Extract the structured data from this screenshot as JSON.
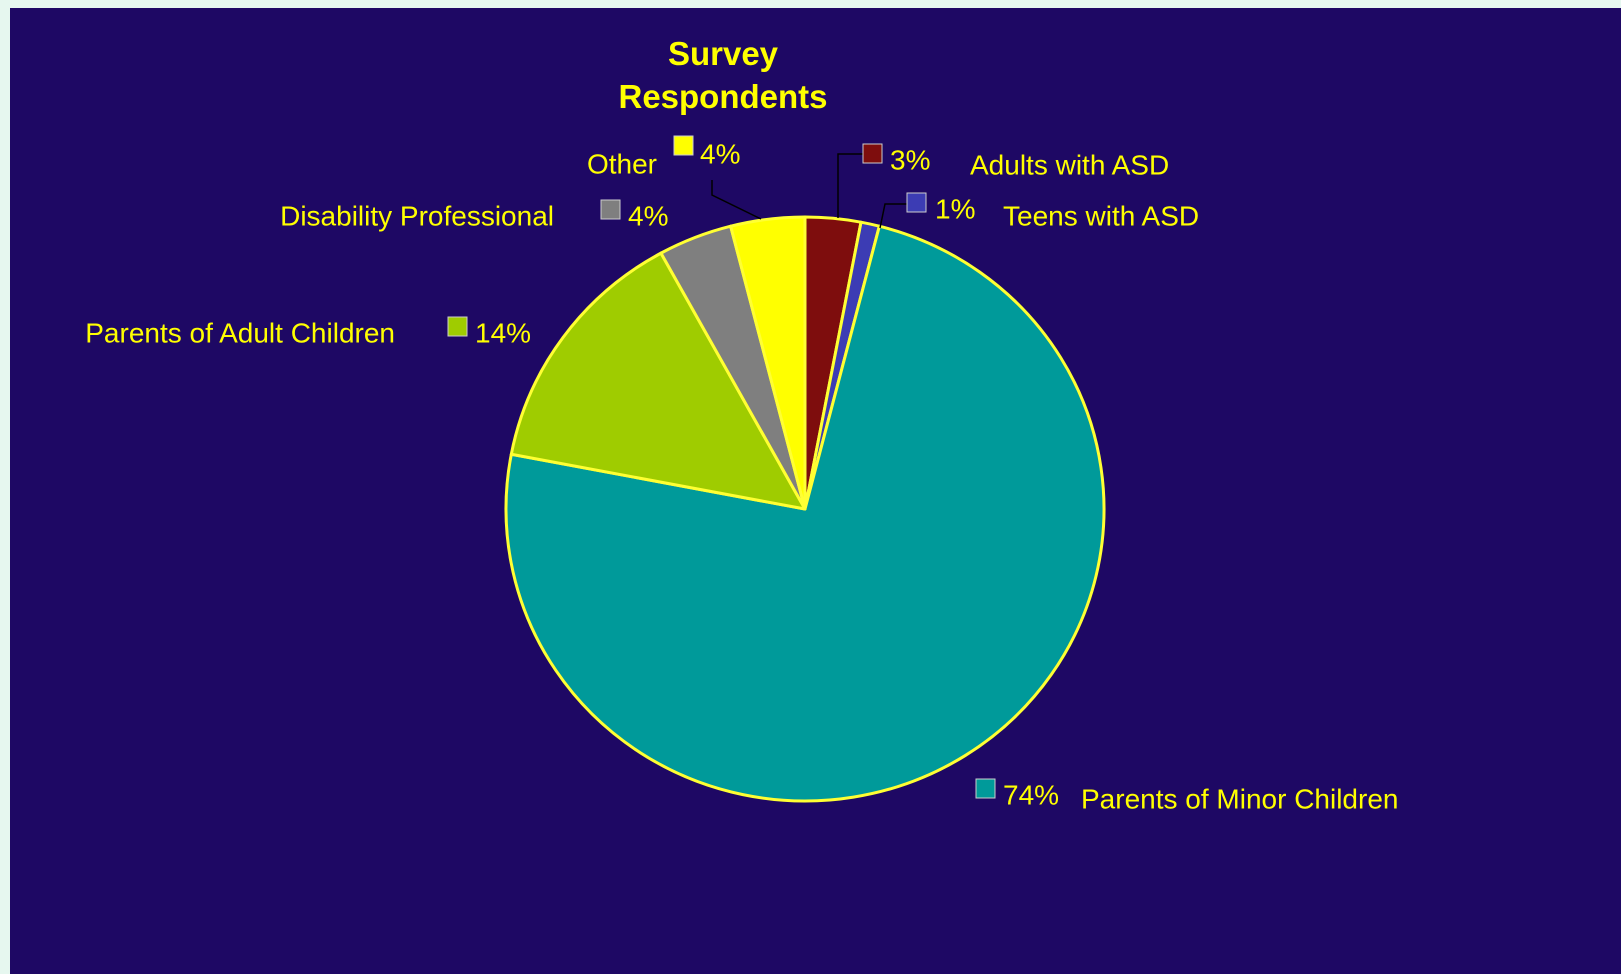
{
  "chart_data": {
    "type": "pie",
    "title_lines": [
      "Survey",
      "Respondents"
    ],
    "start_angle_deg": 0,
    "direction": "clockwise",
    "slices": [
      {
        "name": "Adults with ASD",
        "value": 3,
        "label": "3%",
        "color": "#7e0d0d"
      },
      {
        "name": "Teens with ASD",
        "value": 1,
        "label": "1%",
        "color": "#3c3cb4"
      },
      {
        "name": "Parents of Minor Children",
        "value": 74,
        "label": "74%",
        "color": "#009a9a"
      },
      {
        "name": "Parents of Adult Children",
        "value": 14,
        "label": "14%",
        "color": "#9fcc00"
      },
      {
        "name": "Disability Professional",
        "value": 4,
        "label": "4%",
        "color": "#7f7f7f"
      },
      {
        "name": "Other",
        "value": 4,
        "label": "4%",
        "color": "#ffff00"
      }
    ]
  },
  "colors": {
    "background": "#1e0864",
    "text": "#ffff00",
    "slice_border": "#ffff33",
    "leader": "#000000"
  }
}
